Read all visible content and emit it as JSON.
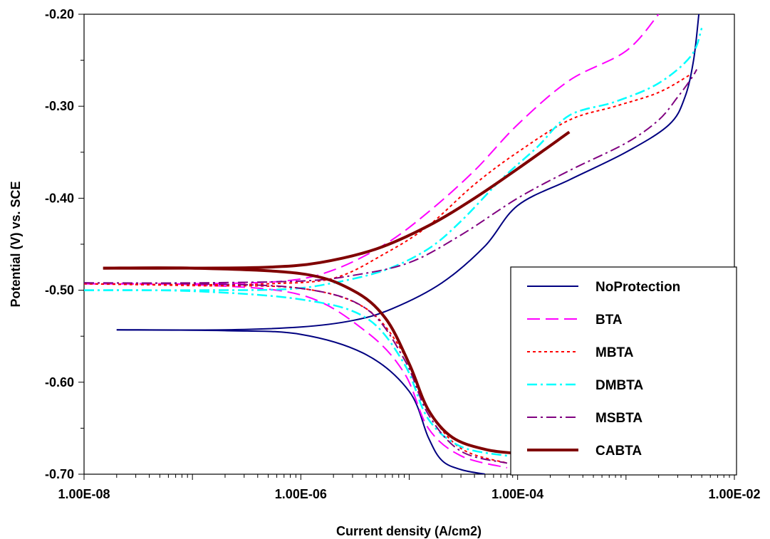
{
  "chart_data": {
    "type": "line",
    "title": "",
    "xlabel": "Current density (A/cm2)",
    "ylabel": "Potential (V) vs. SCE",
    "xscale": "log",
    "xlim": [
      1e-08,
      0.01
    ],
    "ylim": [
      -0.7,
      -0.2
    ],
    "x_ticks": [
      1e-08,
      1e-06,
      0.0001,
      0.01
    ],
    "x_tick_labels": [
      "1.00E-08",
      "1.00E-06",
      "1.00E-04",
      "1.00E-02"
    ],
    "y_ticks": [
      -0.7,
      -0.6,
      -0.5,
      -0.4,
      -0.3,
      -0.2
    ],
    "y_tick_labels": [
      "-0.70",
      "-0.60",
      "-0.50",
      "-0.40",
      "-0.30",
      "-0.20"
    ],
    "grid": false,
    "legend_position": "bottom-right",
    "series": [
      {
        "name": "NoProtection",
        "color": "#000080",
        "dash": "solid",
        "width": 2,
        "branches": [
          [
            [
              2e-08,
              -0.543
            ],
            [
              2e-07,
              -0.543
            ],
            [
              1e-06,
              -0.54
            ],
            [
              3e-06,
              -0.533
            ],
            [
              7e-06,
              -0.52
            ],
            [
              2e-05,
              -0.492
            ],
            [
              5e-05,
              -0.452
            ],
            [
              0.0001,
              -0.408
            ],
            [
              0.0003,
              -0.38
            ],
            [
              0.001,
              -0.35
            ],
            [
              0.0025,
              -0.32
            ],
            [
              0.0035,
              -0.29
            ],
            [
              0.0042,
              -0.25
            ],
            [
              0.0047,
              -0.2
            ]
          ],
          [
            [
              2e-08,
              -0.543
            ],
            [
              2e-07,
              -0.544
            ],
            [
              1e-06,
              -0.548
            ],
            [
              4e-06,
              -0.57
            ],
            [
              1e-05,
              -0.61
            ],
            [
              1.5e-05,
              -0.66
            ],
            [
              2e-05,
              -0.685
            ],
            [
              3e-05,
              -0.695
            ],
            [
              5e-05,
              -0.7
            ]
          ]
        ]
      },
      {
        "name": "BTA",
        "color": "#FF00FF",
        "dash": "dash",
        "width": 2,
        "branches": [
          [
            [
              1e-08,
              -0.493
            ],
            [
              1e-07,
              -0.493
            ],
            [
              7e-07,
              -0.49
            ],
            [
              2e-06,
              -0.478
            ],
            [
              6e-06,
              -0.45
            ],
            [
              1.5e-05,
              -0.415
            ],
            [
              4e-05,
              -0.37
            ],
            [
              0.0001,
              -0.32
            ],
            [
              0.0003,
              -0.272
            ],
            [
              0.001,
              -0.24
            ],
            [
              0.002,
              -0.2
            ]
          ],
          [
            [
              1e-08,
              -0.493
            ],
            [
              1e-07,
              -0.494
            ],
            [
              1e-06,
              -0.505
            ],
            [
              4e-06,
              -0.545
            ],
            [
              9e-06,
              -0.59
            ],
            [
              1.5e-05,
              -0.65
            ],
            [
              3e-05,
              -0.68
            ],
            [
              8e-05,
              -0.693
            ]
          ]
        ]
      },
      {
        "name": "MBTA",
        "color": "#FF0000",
        "dash": "dot",
        "width": 2,
        "branches": [
          [
            [
              1e-08,
              -0.493
            ],
            [
              1e-07,
              -0.494
            ],
            [
              5e-07,
              -0.493
            ],
            [
              2e-06,
              -0.487
            ],
            [
              6e-06,
              -0.46
            ],
            [
              1.5e-05,
              -0.43
            ],
            [
              4e-05,
              -0.385
            ],
            [
              0.0001,
              -0.35
            ],
            [
              0.0003,
              -0.315
            ],
            [
              0.0008,
              -0.3
            ],
            [
              0.002,
              -0.285
            ],
            [
              0.004,
              -0.265
            ]
          ],
          [
            [
              1e-08,
              -0.493
            ],
            [
              1e-07,
              -0.495
            ],
            [
              1e-06,
              -0.498
            ],
            [
              4e-06,
              -0.52
            ],
            [
              9e-06,
              -0.57
            ],
            [
              1.5e-05,
              -0.63
            ],
            [
              3e-05,
              -0.672
            ],
            [
              8e-05,
              -0.688
            ]
          ]
        ]
      },
      {
        "name": "DMBTA",
        "color": "#00FFFF",
        "dash": "dashdot",
        "width": 2.5,
        "branches": [
          [
            [
              1e-08,
              -0.5
            ],
            [
              1e-07,
              -0.5
            ],
            [
              7e-07,
              -0.499
            ],
            [
              2e-06,
              -0.492
            ],
            [
              6e-06,
              -0.478
            ],
            [
              1.5e-05,
              -0.455
            ],
            [
              3e-05,
              -0.425
            ],
            [
              7e-05,
              -0.38
            ],
            [
              0.00015,
              -0.345
            ],
            [
              0.0003,
              -0.31
            ],
            [
              0.0008,
              -0.295
            ],
            [
              0.002,
              -0.275
            ],
            [
              0.004,
              -0.245
            ],
            [
              0.005,
              -0.215
            ]
          ],
          [
            [
              1e-08,
              -0.5
            ],
            [
              1e-07,
              -0.501
            ],
            [
              1e-06,
              -0.51
            ],
            [
              4e-06,
              -0.53
            ],
            [
              9e-06,
              -0.58
            ],
            [
              1.5e-05,
              -0.64
            ],
            [
              3e-05,
              -0.67
            ],
            [
              8e-05,
              -0.68
            ]
          ]
        ]
      },
      {
        "name": "MSBTA",
        "color": "#800080",
        "dash": "dashdot",
        "width": 2,
        "branches": [
          [
            [
              1e-08,
              -0.492
            ],
            [
              1e-07,
              -0.492
            ],
            [
              1e-06,
              -0.49
            ],
            [
              3e-06,
              -0.484
            ],
            [
              1e-05,
              -0.47
            ],
            [
              3e-05,
              -0.44
            ],
            [
              0.0001,
              -0.4
            ],
            [
              0.0003,
              -0.37
            ],
            [
              0.001,
              -0.34
            ],
            [
              0.002,
              -0.315
            ],
            [
              0.003,
              -0.29
            ],
            [
              0.004,
              -0.27
            ],
            [
              0.0045,
              -0.26
            ]
          ],
          [
            [
              1e-08,
              -0.492
            ],
            [
              1e-07,
              -0.493
            ],
            [
              1e-06,
              -0.498
            ],
            [
              4e-06,
              -0.52
            ],
            [
              9e-06,
              -0.575
            ],
            [
              1.5e-05,
              -0.635
            ],
            [
              3e-05,
              -0.675
            ],
            [
              8e-05,
              -0.688
            ]
          ]
        ]
      },
      {
        "name": "CABTA",
        "color": "#800000",
        "dash": "solid",
        "width": 4,
        "branches": [
          [
            [
              1.5e-08,
              -0.476
            ],
            [
              1e-07,
              -0.476
            ],
            [
              5e-07,
              -0.475
            ],
            [
              1.5e-06,
              -0.47
            ],
            [
              5e-06,
              -0.455
            ],
            [
              1.5e-05,
              -0.43
            ],
            [
              4e-05,
              -0.4
            ],
            [
              0.0001,
              -0.368
            ],
            [
              0.0003,
              -0.328
            ]
          ],
          [
            [
              1.5e-08,
              -0.476
            ],
            [
              1e-07,
              -0.476
            ],
            [
              1e-06,
              -0.482
            ],
            [
              3e-06,
              -0.5
            ],
            [
              6e-06,
              -0.53
            ],
            [
              1e-05,
              -0.58
            ],
            [
              1.5e-05,
              -0.63
            ],
            [
              2.5e-05,
              -0.66
            ],
            [
              5e-05,
              -0.673
            ],
            [
              9e-05,
              -0.677
            ]
          ]
        ]
      }
    ]
  }
}
